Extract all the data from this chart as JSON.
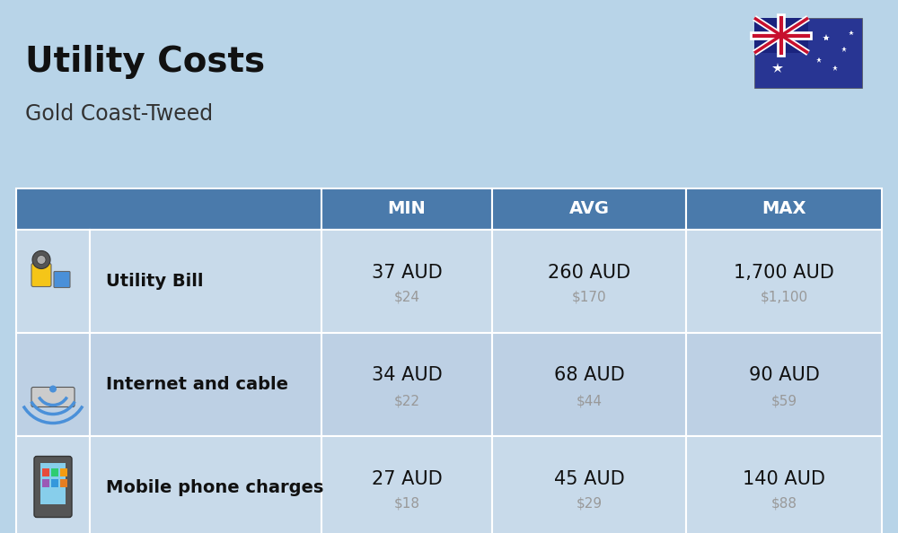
{
  "title": "Utility Costs",
  "subtitle": "Gold Coast-Tweed",
  "background_color": "#b8d4e8",
  "header_color": "#4a7aab",
  "header_text_color": "#ffffff",
  "row_colors": [
    "#c8daea",
    "#bdd0e4"
  ],
  "table_border_color": "#ffffff",
  "rows": [
    {
      "label": "Utility Bill",
      "icon": "utility",
      "min_aud": "37 AUD",
      "min_usd": "$24",
      "avg_aud": "260 AUD",
      "avg_usd": "$170",
      "max_aud": "1,700 AUD",
      "max_usd": "$1,100"
    },
    {
      "label": "Internet and cable",
      "icon": "internet",
      "min_aud": "34 AUD",
      "min_usd": "$22",
      "avg_aud": "68 AUD",
      "avg_usd": "$44",
      "max_aud": "90 AUD",
      "max_usd": "$59"
    },
    {
      "label": "Mobile phone charges",
      "icon": "mobile",
      "min_aud": "27 AUD",
      "min_usd": "$18",
      "avg_aud": "45 AUD",
      "avg_usd": "$29",
      "max_aud": "140 AUD",
      "max_usd": "$88"
    }
  ],
  "col_headers": [
    "MIN",
    "AVG",
    "MAX"
  ],
  "aud_fontsize": 15,
  "usd_fontsize": 11,
  "label_fontsize": 14,
  "header_fontsize": 14,
  "title_fontsize": 28,
  "subtitle_fontsize": 17
}
